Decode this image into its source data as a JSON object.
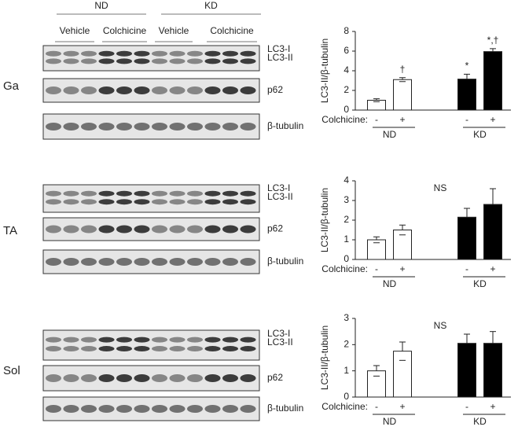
{
  "blots": {
    "groups": [
      "ND",
      "KD"
    ],
    "treatments": [
      "Vehicle",
      "Colchicine",
      "Vehicle",
      "Colchicine"
    ],
    "panels": [
      {
        "tissue": "Ga",
        "strips": [
          [
            "LC3-I",
            "LC3-II"
          ],
          [
            "p62"
          ],
          [
            "β-tubulin"
          ]
        ]
      },
      {
        "tissue": "TA",
        "strips": [
          [
            "LC3-I",
            "LC3-II"
          ],
          [
            "p62"
          ],
          [
            "β-tubulin"
          ]
        ]
      },
      {
        "tissue": "Sol",
        "strips": [
          [
            "LC3-I",
            "LC3-II"
          ],
          [
            "p62"
          ],
          [
            "β-tubulin"
          ]
        ]
      }
    ]
  },
  "chart_data": [
    {
      "type": "bar",
      "y_label": "LC3-II/β-tubulin",
      "x_prefix": "Colchicine:",
      "categories": [
        "-",
        "+",
        "-",
        "+"
      ],
      "groups": [
        "ND",
        "KD"
      ],
      "values": [
        1.0,
        3.1,
        3.15,
        5.95
      ],
      "errors": [
        0.15,
        0.2,
        0.5,
        0.3
      ],
      "colors": [
        "#ffffff",
        "#ffffff",
        "#000000",
        "#000000"
      ],
      "bar_labels": [
        null,
        "†",
        "*",
        "*,†"
      ],
      "ylim": [
        0,
        8
      ],
      "yticks": [
        0,
        2,
        4,
        6,
        8
      ]
    },
    {
      "type": "bar",
      "y_label": "LC3-II/β-tubulin",
      "x_prefix": "Colchicine:",
      "categories": [
        "-",
        "+",
        "-",
        "+"
      ],
      "groups": [
        "ND",
        "KD"
      ],
      "values": [
        1.0,
        1.5,
        2.15,
        2.8
      ],
      "errors": [
        0.15,
        0.25,
        0.45,
        0.8
      ],
      "colors": [
        "#ffffff",
        "#ffffff",
        "#000000",
        "#000000"
      ],
      "annotation": "NS",
      "ylim": [
        0,
        4
      ],
      "yticks": [
        0,
        1,
        2,
        3,
        4
      ]
    },
    {
      "type": "bar",
      "y_label": "LC3-II/β-tubulin",
      "x_prefix": "Colchicine:",
      "categories": [
        "-",
        "+",
        "-",
        "+"
      ],
      "groups": [
        "ND",
        "KD"
      ],
      "values": [
        1.0,
        1.75,
        2.05,
        2.05
      ],
      "errors": [
        0.2,
        0.35,
        0.35,
        0.45
      ],
      "colors": [
        "#ffffff",
        "#ffffff",
        "#000000",
        "#000000"
      ],
      "annotation": "NS",
      "ylim": [
        0,
        3
      ],
      "yticks": [
        0,
        1,
        2,
        3
      ]
    }
  ]
}
